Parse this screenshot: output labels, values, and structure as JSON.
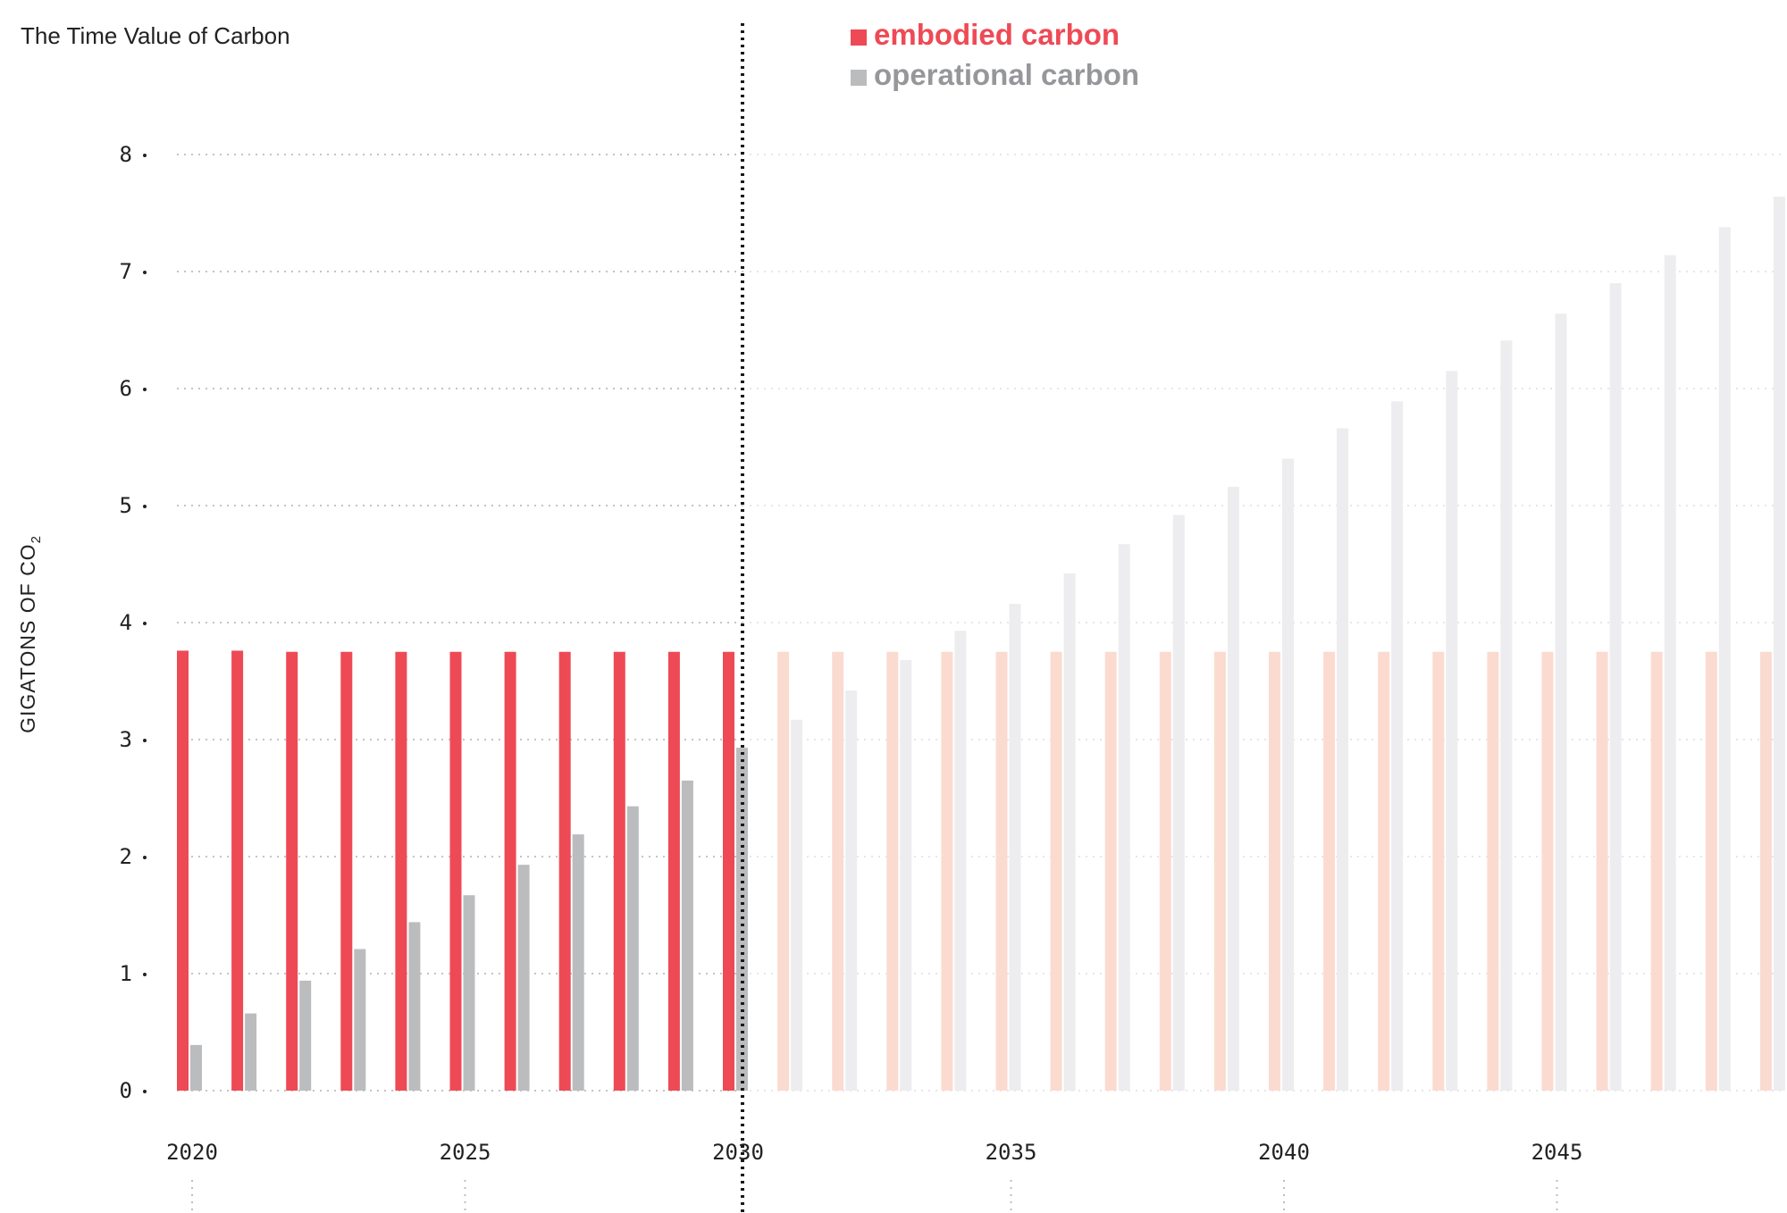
{
  "chart_data": {
    "type": "bar",
    "title": "The Time Value of Carbon",
    "ylabel": "GIGATONS OF CO",
    "ylabel_subscript": "2",
    "ylim": [
      0,
      8
    ],
    "yticks": [
      0,
      1,
      2,
      3,
      4,
      5,
      6,
      7,
      8
    ],
    "xticks": [
      2020,
      2025,
      2030,
      2035,
      2040,
      2045
    ],
    "divider_year": 2030,
    "grid": true,
    "legend_position": "top-center",
    "x": [
      2020,
      2021,
      2022,
      2023,
      2024,
      2025,
      2026,
      2027,
      2028,
      2029,
      2030,
      2031,
      2032,
      2033,
      2034,
      2035,
      2036,
      2037,
      2038,
      2039,
      2040,
      2041,
      2042,
      2043,
      2044,
      2045,
      2046,
      2047,
      2048,
      2049
    ],
    "series": [
      {
        "name": "embodied carbon",
        "color": "#ee4a55",
        "faded_color": "#fbdbd0",
        "values": [
          3.76,
          3.76,
          3.75,
          3.75,
          3.75,
          3.75,
          3.75,
          3.75,
          3.75,
          3.75,
          3.75,
          3.75,
          3.75,
          3.75,
          3.75,
          3.75,
          3.75,
          3.75,
          3.75,
          3.75,
          3.75,
          3.75,
          3.75,
          3.75,
          3.75,
          3.75,
          3.75,
          3.75,
          3.75,
          3.75
        ]
      },
      {
        "name": "operational carbon",
        "color": "#bbbcbe",
        "faded_color": "#ededef",
        "values": [
          0.39,
          0.66,
          0.94,
          1.21,
          1.44,
          1.67,
          1.93,
          2.19,
          2.43,
          2.65,
          2.93,
          3.17,
          3.42,
          3.68,
          3.93,
          4.16,
          4.42,
          4.67,
          4.92,
          5.16,
          5.4,
          5.66,
          5.89,
          6.15,
          6.41,
          6.64,
          6.9,
          7.14,
          7.38,
          7.64
        ]
      }
    ]
  }
}
